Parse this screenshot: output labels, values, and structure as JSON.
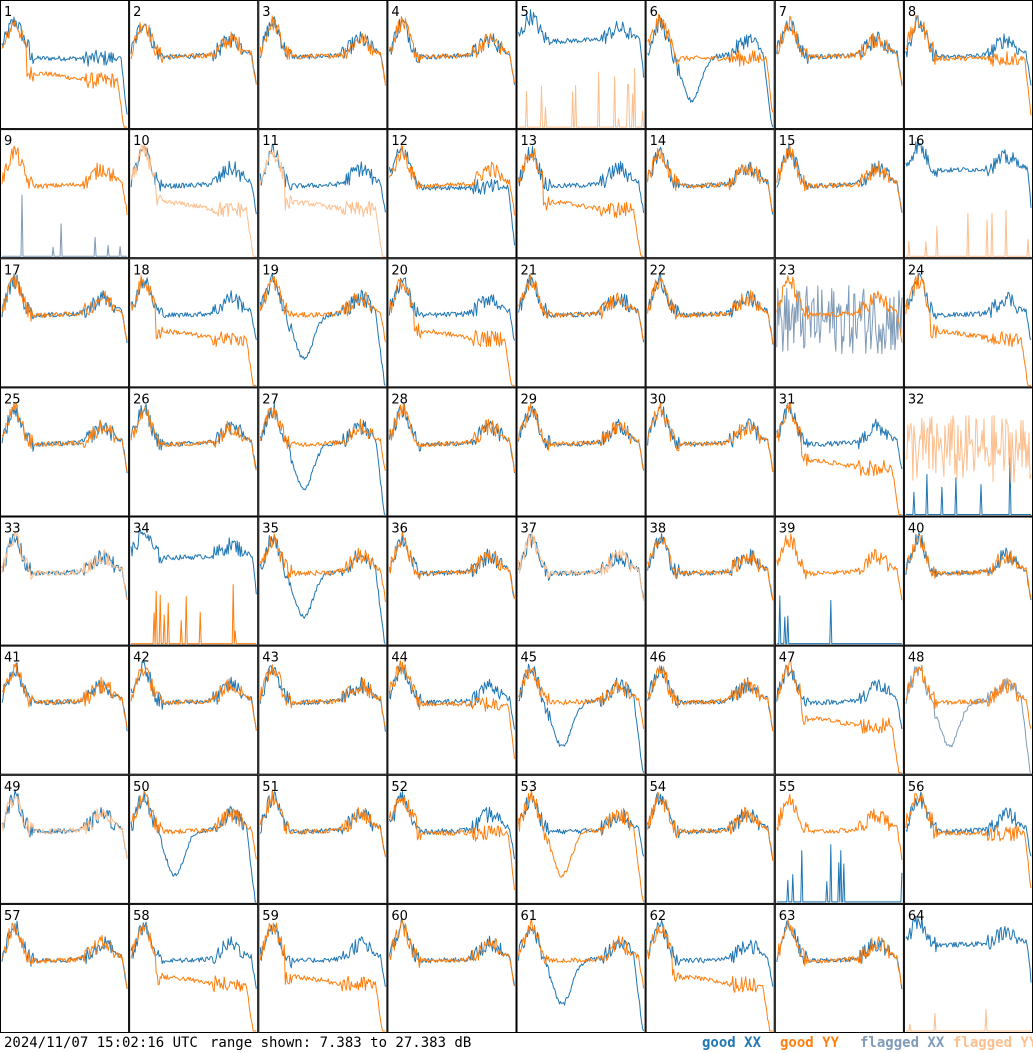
{
  "chart_data": {
    "type": "line",
    "layout": "small-multiples",
    "grid": {
      "rows": 8,
      "cols": 8
    },
    "timestamp": "2024/11/07 15:02:16 UTC",
    "range_text": "range shown: 7.383 to 27.383 dB",
    "ylim": [
      7.383,
      27.383
    ],
    "y_units": "dB",
    "colors": {
      "good_xx": "#1f77b4",
      "good_yy": "#ff7f0e",
      "flagged_xx": "#7f9bb8",
      "flagged_yy": "#fdbf8e"
    },
    "legend": [
      {
        "label": "good XX",
        "color": "#1f77b4"
      },
      {
        "label": "good YY",
        "color": "#ff7f0e"
      },
      {
        "label": "flagged XX",
        "color": "#7f9bb8"
      },
      {
        "label": "flagged YY",
        "color": "#fdbf8e"
      }
    ],
    "panel_labels": [
      "1",
      "2",
      "3",
      "4",
      "5",
      "6",
      "7",
      "8",
      "9",
      "10",
      "11",
      "12",
      "13",
      "14",
      "15",
      "16",
      "17",
      "18",
      "19",
      "20",
      "21",
      "22",
      "23",
      "24",
      "25",
      "26",
      "27",
      "28",
      "29",
      "30",
      "31",
      "32",
      "33",
      "34",
      "35",
      "36",
      "37",
      "38",
      "39",
      "40",
      "41",
      "42",
      "43",
      "44",
      "45",
      "46",
      "47",
      "48",
      "49",
      "50",
      "51",
      "52",
      "53",
      "54",
      "55",
      "56",
      "57",
      "58",
      "59",
      "60",
      "61",
      "62",
      "63",
      "64"
    ],
    "panels": [
      {
        "id": 1,
        "xx": "flat",
        "yy": "low_flat",
        "xx_flag": false,
        "yy_flag": false
      },
      {
        "id": 2,
        "xx": "normal",
        "yy": "normal",
        "xx_flag": false,
        "yy_flag": false
      },
      {
        "id": 3,
        "xx": "normal",
        "yy": "normal",
        "xx_flag": false,
        "yy_flag": false
      },
      {
        "id": 4,
        "xx": "normal",
        "yy": "normal",
        "xx_flag": false,
        "yy_flag": false
      },
      {
        "id": 5,
        "xx": "high",
        "yy": "dead",
        "xx_flag": false,
        "yy_flag": true
      },
      {
        "id": 6,
        "xx": "dip",
        "yy": "flat",
        "xx_flag": false,
        "yy_flag": false
      },
      {
        "id": 7,
        "xx": "normal",
        "yy": "normal",
        "xx_flag": false,
        "yy_flag": false
      },
      {
        "id": 8,
        "xx": "normal",
        "yy": "flat",
        "xx_flag": false,
        "yy_flag": false
      },
      {
        "id": 9,
        "xx": "dead",
        "yy": "normal",
        "xx_flag": true,
        "yy_flag": false
      },
      {
        "id": 10,
        "xx": "normal",
        "yy": "low_flat",
        "xx_flag": false,
        "yy_flag": true
      },
      {
        "id": 11,
        "xx": "normal",
        "yy": "low_flat",
        "xx_flag": false,
        "yy_flag": true
      },
      {
        "id": 12,
        "xx": "flat",
        "yy": "normal",
        "xx_flag": false,
        "yy_flag": false
      },
      {
        "id": 13,
        "xx": "normal",
        "yy": "low_flat",
        "xx_flag": false,
        "yy_flag": false
      },
      {
        "id": 14,
        "xx": "normal",
        "yy": "normal",
        "xx_flag": false,
        "yy_flag": false
      },
      {
        "id": 15,
        "xx": "normal",
        "yy": "normal",
        "xx_flag": false,
        "yy_flag": false
      },
      {
        "id": 16,
        "xx": "high",
        "yy": "dead",
        "xx_flag": false,
        "yy_flag": true
      },
      {
        "id": 17,
        "xx": "normal",
        "yy": "normal",
        "xx_flag": false,
        "yy_flag": false
      },
      {
        "id": 18,
        "xx": "normal",
        "yy": "low_flat",
        "xx_flag": false,
        "yy_flag": false
      },
      {
        "id": 19,
        "xx": "dip",
        "yy": "normal",
        "xx_flag": false,
        "yy_flag": false
      },
      {
        "id": 20,
        "xx": "normal",
        "yy": "low_flat",
        "xx_flag": false,
        "yy_flag": false
      },
      {
        "id": 21,
        "xx": "normal",
        "yy": "normal",
        "xx_flag": false,
        "yy_flag": false
      },
      {
        "id": 22,
        "xx": "normal",
        "yy": "normal",
        "xx_flag": false,
        "yy_flag": false
      },
      {
        "id": 23,
        "xx": "noisy",
        "yy": "normal",
        "xx_flag": true,
        "yy_flag": false
      },
      {
        "id": 24,
        "xx": "normal",
        "yy": "low_flat",
        "xx_flag": false,
        "yy_flag": false
      },
      {
        "id": 25,
        "xx": "normal",
        "yy": "normal",
        "xx_flag": false,
        "yy_flag": false
      },
      {
        "id": 26,
        "xx": "normal",
        "yy": "normal",
        "xx_flag": false,
        "yy_flag": false
      },
      {
        "id": 27,
        "xx": "dip",
        "yy": "normal",
        "xx_flag": false,
        "yy_flag": false
      },
      {
        "id": 28,
        "xx": "normal",
        "yy": "normal",
        "xx_flag": false,
        "yy_flag": false
      },
      {
        "id": 29,
        "xx": "normal",
        "yy": "normal",
        "xx_flag": false,
        "yy_flag": false
      },
      {
        "id": 30,
        "xx": "normal",
        "yy": "normal",
        "xx_flag": false,
        "yy_flag": false
      },
      {
        "id": 31,
        "xx": "normal",
        "yy": "low_flat",
        "xx_flag": false,
        "yy_flag": false
      },
      {
        "id": 32,
        "xx": "dead",
        "yy": "noisy",
        "xx_flag": false,
        "yy_flag": true
      },
      {
        "id": 33,
        "xx": "normal",
        "yy": "normal",
        "xx_flag": false,
        "yy_flag": true
      },
      {
        "id": 34,
        "xx": "high",
        "yy": "dead",
        "xx_flag": false,
        "yy_flag": false
      },
      {
        "id": 35,
        "xx": "dip",
        "yy": "normal",
        "xx_flag": false,
        "yy_flag": false
      },
      {
        "id": 36,
        "xx": "normal",
        "yy": "normal",
        "xx_flag": false,
        "yy_flag": false
      },
      {
        "id": 37,
        "xx": "normal",
        "yy": "normal",
        "xx_flag": false,
        "yy_flag": true
      },
      {
        "id": 38,
        "xx": "normal",
        "yy": "normal",
        "xx_flag": false,
        "yy_flag": false
      },
      {
        "id": 39,
        "xx": "dead",
        "yy": "normal",
        "xx_flag": false,
        "yy_flag": false
      },
      {
        "id": 40,
        "xx": "normal",
        "yy": "normal",
        "xx_flag": false,
        "yy_flag": false
      },
      {
        "id": 41,
        "xx": "normal",
        "yy": "normal",
        "xx_flag": false,
        "yy_flag": false
      },
      {
        "id": 42,
        "xx": "normal",
        "yy": "normal",
        "xx_flag": false,
        "yy_flag": false
      },
      {
        "id": 43,
        "xx": "normal",
        "yy": "normal",
        "xx_flag": false,
        "yy_flag": false
      },
      {
        "id": 44,
        "xx": "normal",
        "yy": "flat",
        "xx_flag": false,
        "yy_flag": false
      },
      {
        "id": 45,
        "xx": "dip",
        "yy": "normal",
        "xx_flag": false,
        "yy_flag": false
      },
      {
        "id": 46,
        "xx": "normal",
        "yy": "normal",
        "xx_flag": false,
        "yy_flag": false
      },
      {
        "id": 47,
        "xx": "normal",
        "yy": "low_flat",
        "xx_flag": false,
        "yy_flag": false
      },
      {
        "id": 48,
        "xx": "dip",
        "yy": "normal",
        "xx_flag": true,
        "yy_flag": false
      },
      {
        "id": 49,
        "xx": "normal",
        "yy": "normal",
        "xx_flag": false,
        "yy_flag": true
      },
      {
        "id": 50,
        "xx": "dip",
        "yy": "normal",
        "xx_flag": false,
        "yy_flag": false
      },
      {
        "id": 51,
        "xx": "normal",
        "yy": "normal",
        "xx_flag": false,
        "yy_flag": false
      },
      {
        "id": 52,
        "xx": "normal",
        "yy": "flat",
        "xx_flag": false,
        "yy_flag": false
      },
      {
        "id": 53,
        "xx": "normal",
        "yy": "dip",
        "xx_flag": false,
        "yy_flag": false
      },
      {
        "id": 54,
        "xx": "normal",
        "yy": "normal",
        "xx_flag": false,
        "yy_flag": false
      },
      {
        "id": 55,
        "xx": "dead",
        "yy": "normal",
        "xx_flag": false,
        "yy_flag": false
      },
      {
        "id": 56,
        "xx": "normal",
        "yy": "flat",
        "xx_flag": false,
        "yy_flag": false
      },
      {
        "id": 57,
        "xx": "normal",
        "yy": "normal",
        "xx_flag": false,
        "yy_flag": false
      },
      {
        "id": 58,
        "xx": "normal",
        "yy": "low_flat",
        "xx_flag": false,
        "yy_flag": false
      },
      {
        "id": 59,
        "xx": "normal",
        "yy": "low_flat",
        "xx_flag": false,
        "yy_flag": false
      },
      {
        "id": 60,
        "xx": "normal",
        "yy": "normal",
        "xx_flag": false,
        "yy_flag": false
      },
      {
        "id": 61,
        "xx": "dip",
        "yy": "normal",
        "xx_flag": false,
        "yy_flag": false
      },
      {
        "id": 62,
        "xx": "normal",
        "yy": "low_flat",
        "xx_flag": false,
        "yy_flag": false
      },
      {
        "id": 63,
        "xx": "normal",
        "yy": "normal",
        "xx_flag": false,
        "yy_flag": false
      },
      {
        "id": 64,
        "xx": "high",
        "yy": "dead",
        "xx_flag": false,
        "yy_flag": true
      }
    ]
  }
}
